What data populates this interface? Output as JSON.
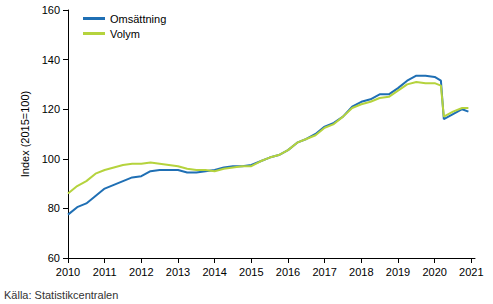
{
  "chart_data": {
    "type": "line",
    "y_label": "Index (2015=100)",
    "annotations": [
      "Källa: Statistikcentralen"
    ],
    "x": [
      2010,
      2010.25,
      2010.5,
      2010.75,
      2011,
      2011.25,
      2011.5,
      2011.75,
      2012,
      2012.25,
      2012.5,
      2012.75,
      2013,
      2013.25,
      2013.5,
      2013.75,
      2014,
      2014.25,
      2014.5,
      2014.75,
      2015,
      2015.25,
      2015.5,
      2015.75,
      2016,
      2016.25,
      2016.5,
      2016.75,
      2017,
      2017.25,
      2017.5,
      2017.75,
      2018,
      2018.25,
      2018.5,
      2018.75,
      2019,
      2019.25,
      2019.5,
      2019.75,
      2020,
      2020.17,
      2020.25,
      2020.5,
      2020.75,
      2020.92
    ],
    "series": [
      {
        "name": "Omsättning",
        "color": "#1f6fb4",
        "values": [
          77.5,
          80.5,
          82,
          85,
          88,
          89.5,
          91,
          92.5,
          93,
          95,
          95.5,
          95.5,
          95.5,
          94.5,
          94.5,
          95,
          95.5,
          96.5,
          97,
          97,
          97.5,
          99,
          100.5,
          101.5,
          103.5,
          106.5,
          108,
          110,
          113,
          114.5,
          117,
          121,
          123,
          124,
          126,
          126,
          128.5,
          131.5,
          133.5,
          133.5,
          133,
          131.5,
          116,
          118,
          120,
          119
        ]
      },
      {
        "name": "Volym",
        "color": "#b5d33d",
        "values": [
          86,
          89,
          91,
          94,
          95.5,
          96.5,
          97.5,
          98,
          98,
          98.5,
          98,
          97.5,
          97,
          96,
          95.5,
          95.5,
          95,
          96,
          96.5,
          97,
          97,
          99,
          100.5,
          101.5,
          103.5,
          106.5,
          108,
          109.5,
          112.5,
          114,
          117,
          120.5,
          122,
          123,
          124.5,
          125,
          127.5,
          130,
          131,
          130.5,
          130.5,
          129.5,
          117,
          119,
          120.5,
          120.5
        ]
      }
    ],
    "xlim": [
      2010,
      2021.1
    ],
    "xticks": [
      2010,
      2011,
      2012,
      2013,
      2014,
      2015,
      2016,
      2017,
      2018,
      2019,
      2020,
      2021
    ],
    "ylim": [
      60,
      160
    ],
    "yticks": [
      60,
      80,
      100,
      120,
      140,
      160
    ],
    "grid": false,
    "legend": "top-left"
  }
}
